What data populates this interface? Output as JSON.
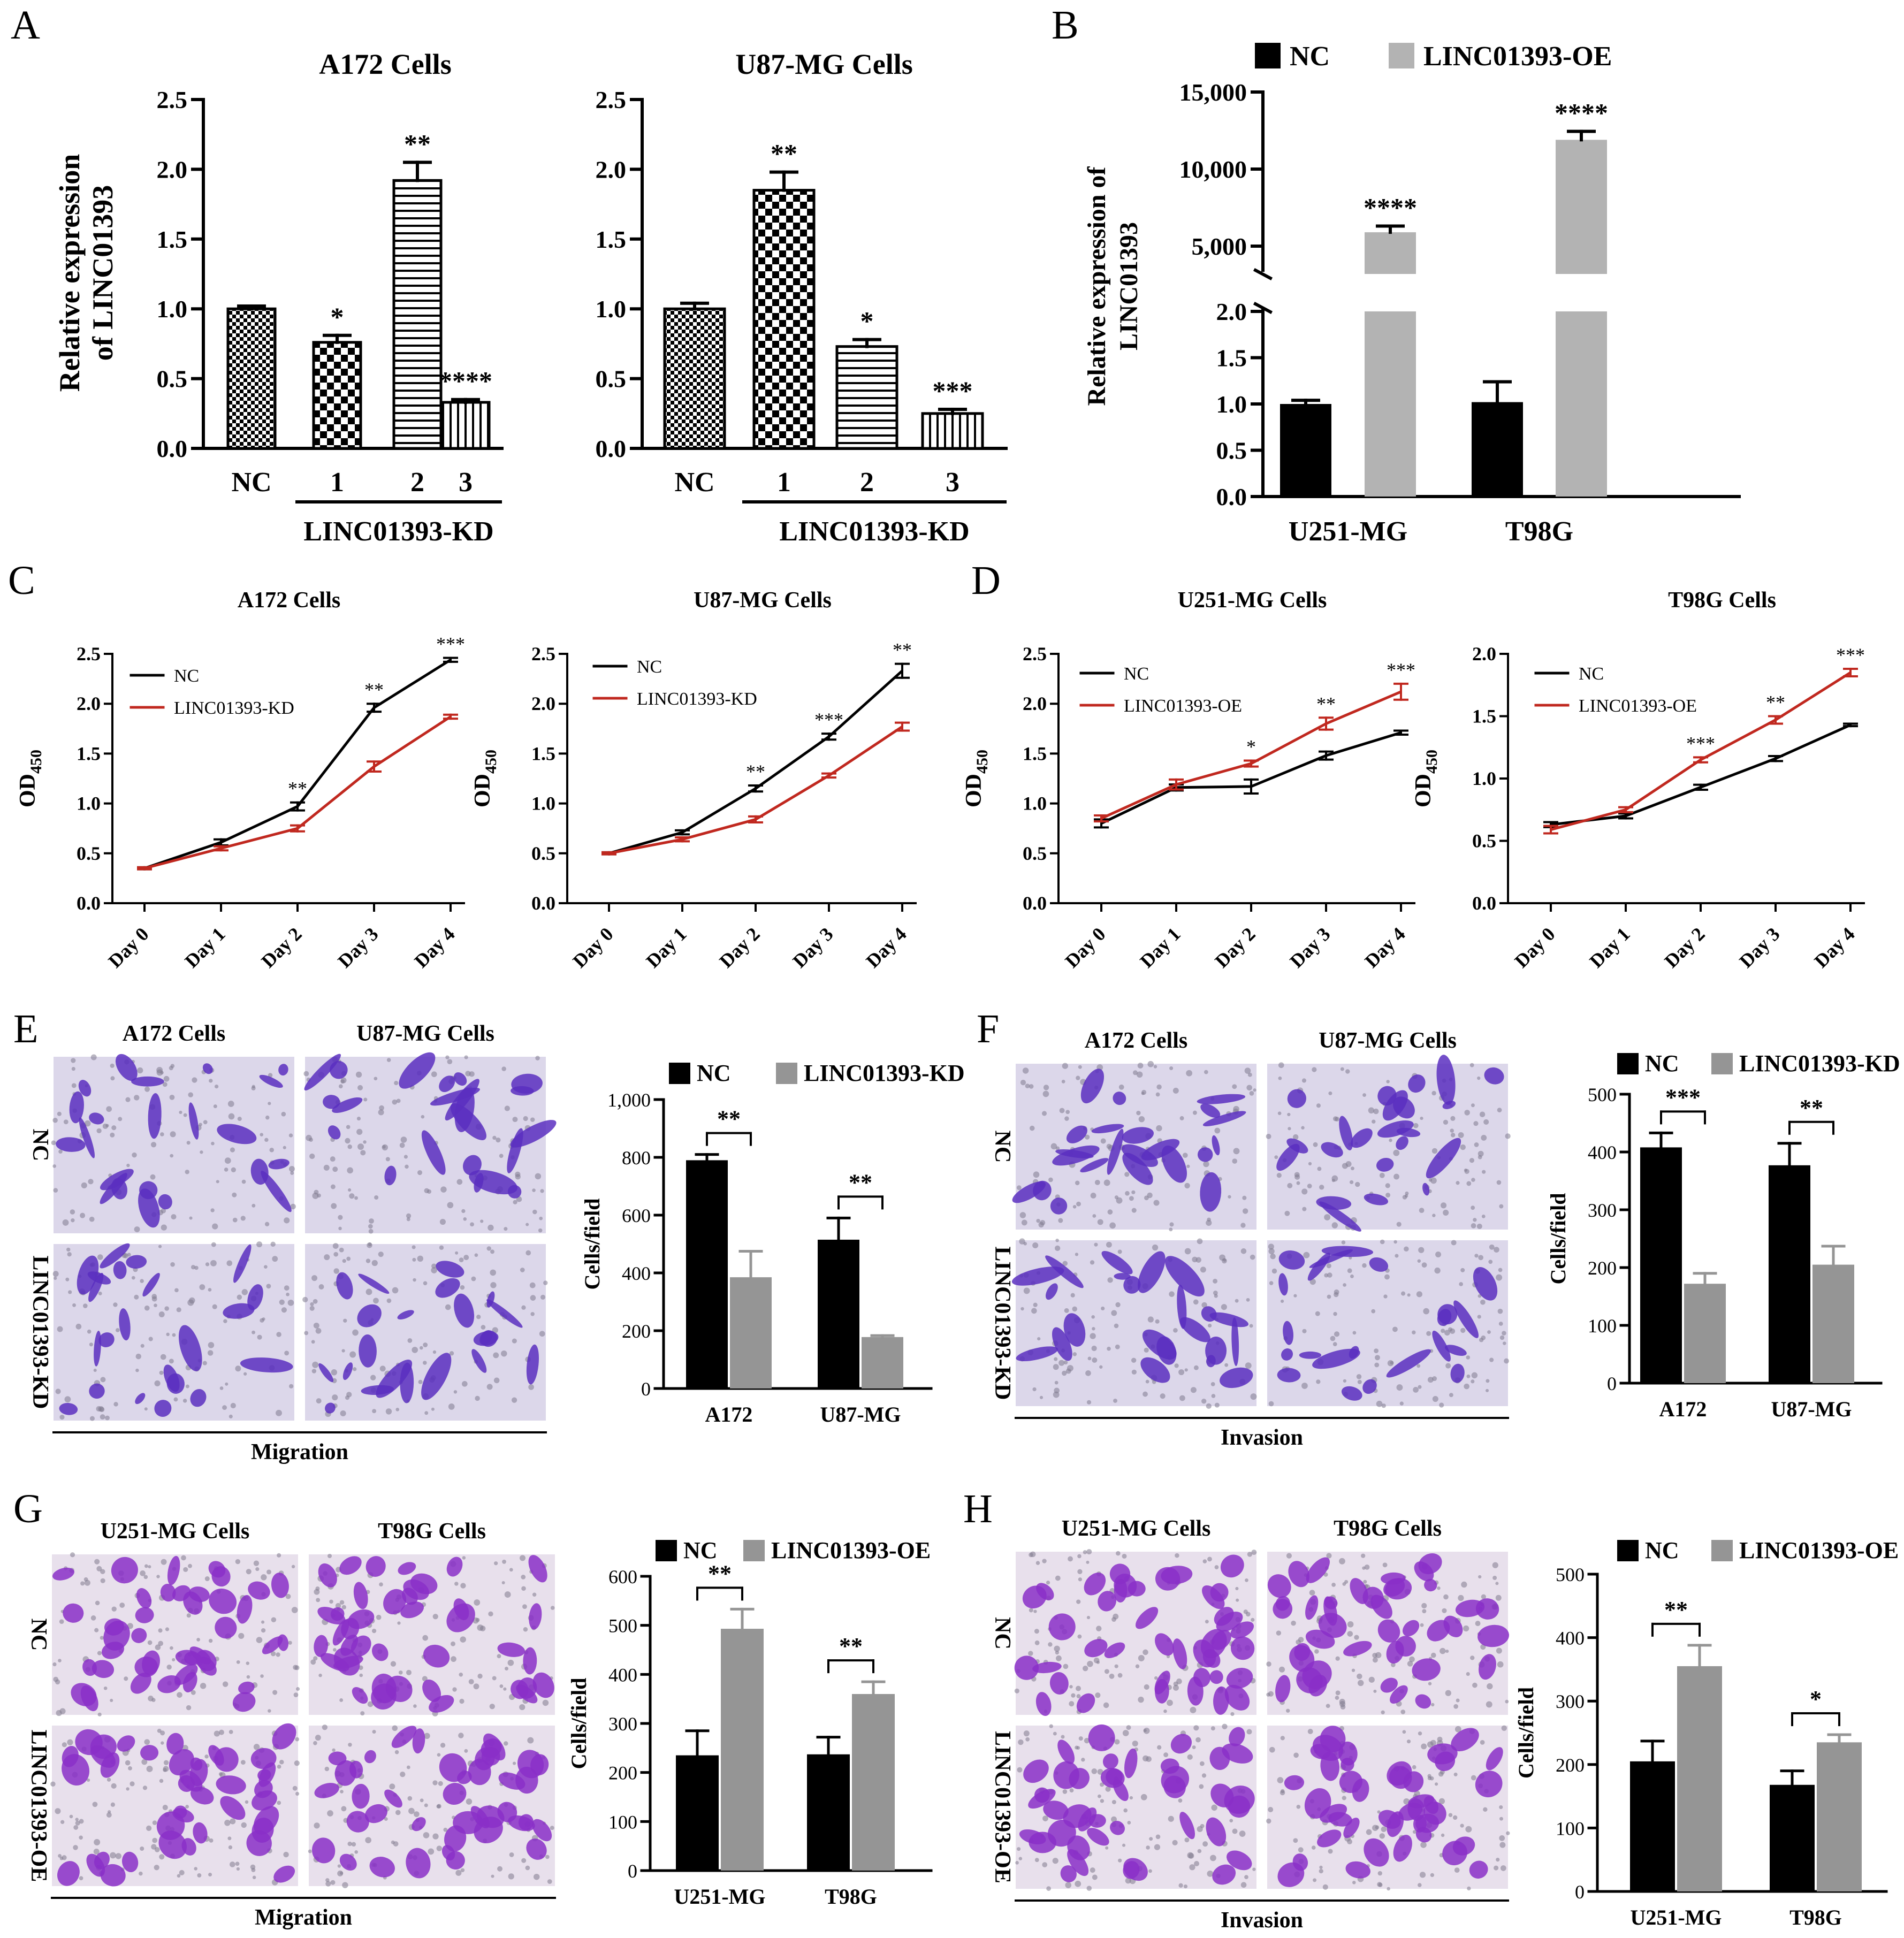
{
  "figure": {
    "panel_letters": [
      "A",
      "B",
      "C",
      "D",
      "E",
      "F",
      "G",
      "H"
    ],
    "colors": {
      "black": "#000000",
      "grey": "#b3b3b3",
      "grey_dark": "#959595",
      "red": "#c0281f",
      "stain": "#5a2fc0",
      "stain_bg": "#dcd7ea"
    }
  },
  "chart_data": [
    {
      "panel": "A",
      "type": "bar",
      "title": "A172 Cells",
      "ylabel": [
        "Relative expression",
        "of LINC01393"
      ],
      "categories": [
        "NC",
        "1",
        "2",
        "3"
      ],
      "group_label": "LINC01393-KD",
      "values": [
        1.0,
        0.76,
        1.92,
        0.33
      ],
      "errors": [
        0.02,
        0.05,
        0.13,
        0.02
      ],
      "significance": [
        "",
        "*",
        "**",
        "****"
      ],
      "patterns": [
        "checker-fine",
        "checker",
        "hlines",
        "vlines"
      ],
      "ylim": [
        0,
        2.5
      ],
      "yticks": [
        "0.0",
        "0.5",
        "1.0",
        "1.5",
        "2.0",
        "2.5"
      ]
    },
    {
      "panel": "A",
      "type": "bar",
      "title": "U87-MG Cells",
      "categories": [
        "NC",
        "1",
        "2",
        "3"
      ],
      "group_label": "LINC01393-KD",
      "values": [
        1.0,
        1.85,
        0.73,
        0.25
      ],
      "errors": [
        0.04,
        0.13,
        0.05,
        0.03
      ],
      "significance": [
        "",
        "**",
        "*",
        "***"
      ],
      "patterns": [
        "checker-fine",
        "checker",
        "hlines",
        "vlines"
      ],
      "ylim": [
        0,
        2.5
      ],
      "yticks": [
        "0.0",
        "0.5",
        "1.0",
        "1.5",
        "2.0",
        "2.5"
      ]
    },
    {
      "panel": "B",
      "type": "bar",
      "broken_axis": true,
      "ylabel": [
        "Relative expression of",
        "LINC01393"
      ],
      "legend": [
        "NC",
        "LINC01393-OE"
      ],
      "categories": [
        "U251-MG",
        "T98G"
      ],
      "series": [
        {
          "name": "NC",
          "values": [
            1.0,
            1.02
          ],
          "errors": [
            0.04,
            0.22
          ]
        },
        {
          "name": "LINC01393-OE",
          "values": [
            5900,
            11900
          ],
          "errors": [
            400,
            550
          ]
        }
      ],
      "significance": [
        "****",
        "****"
      ],
      "lower_yticks": [
        "0.0",
        "0.5",
        "1.0",
        "1.5",
        "2.0"
      ],
      "upper_yticks": [
        "5,000",
        "10,000",
        "15,000"
      ]
    },
    {
      "panel": "C",
      "type": "line",
      "title": "A172 Cells",
      "ylabel": "OD",
      "ylabel_sub": "450",
      "x": [
        "Day 0",
        "Day 1",
        "Day 2",
        "Day 3",
        "Day 4"
      ],
      "legend": [
        "NC",
        "LINC01393-KD"
      ],
      "series": [
        {
          "name": "NC",
          "values": [
            0.35,
            0.61,
            0.97,
            1.96,
            2.44
          ],
          "errors": [
            0.01,
            0.03,
            0.04,
            0.04,
            0.02
          ]
        },
        {
          "name": "LINC01393-KD",
          "values": [
            0.35,
            0.55,
            0.75,
            1.37,
            1.87
          ],
          "errors": [
            0.01,
            0.02,
            0.03,
            0.05,
            0.02
          ]
        }
      ],
      "significance": [
        "",
        "",
        "**",
        "**",
        "***"
      ],
      "ylim": [
        0,
        2.5
      ],
      "yticks": [
        "0.0",
        "0.5",
        "1.0",
        "1.5",
        "2.0",
        "2.5"
      ]
    },
    {
      "panel": "C",
      "type": "line",
      "title": "U87-MG Cells",
      "ylabel": "OD",
      "ylabel_sub": "450",
      "x": [
        "Day 0",
        "Day 1",
        "Day 2",
        "Day 3",
        "Day 4"
      ],
      "legend": [
        "NC",
        "LINC01393-KD"
      ],
      "series": [
        {
          "name": "NC",
          "values": [
            0.5,
            0.71,
            1.15,
            1.67,
            2.33
          ],
          "errors": [
            0.01,
            0.02,
            0.03,
            0.03,
            0.07
          ]
        },
        {
          "name": "LINC01393-KD",
          "values": [
            0.5,
            0.64,
            0.84,
            1.28,
            1.77
          ],
          "errors": [
            0.01,
            0.02,
            0.03,
            0.02,
            0.04
          ]
        }
      ],
      "significance": [
        "",
        "",
        "**",
        "***",
        "**"
      ],
      "ylim": [
        0,
        2.5
      ],
      "yticks": [
        "0.0",
        "0.5",
        "1.0",
        "1.5",
        "2.0",
        "2.5"
      ]
    },
    {
      "panel": "D",
      "type": "line",
      "title": "U251-MG Cells",
      "ylabel": "OD",
      "ylabel_sub": "450",
      "x": [
        "Day 0",
        "Day 1",
        "Day 2",
        "Day 3",
        "Day 4"
      ],
      "legend": [
        "NC",
        "LINC01393-OE"
      ],
      "series": [
        {
          "name": "NC",
          "values": [
            0.8,
            1.16,
            1.17,
            1.48,
            1.71
          ],
          "errors": [
            0.04,
            0.03,
            0.07,
            0.04,
            0.02
          ]
        },
        {
          "name": "LINC01393-OE",
          "values": [
            0.85,
            1.19,
            1.4,
            1.8,
            2.12
          ],
          "errors": [
            0.03,
            0.05,
            0.03,
            0.06,
            0.08
          ]
        }
      ],
      "significance": [
        "",
        "",
        "*",
        "**",
        "***"
      ],
      "ylim": [
        0,
        2.5
      ],
      "yticks": [
        "0.0",
        "0.5",
        "1.0",
        "1.5",
        "2.0",
        "2.5"
      ]
    },
    {
      "panel": "D",
      "type": "line",
      "title": "T98G Cells",
      "ylabel": "OD",
      "ylabel_sub": "450",
      "x": [
        "Day 0",
        "Day 1",
        "Day 2",
        "Day 3",
        "Day 4"
      ],
      "legend": [
        "NC",
        "LINC01393-OE"
      ],
      "series": [
        {
          "name": "NC",
          "values": [
            0.63,
            0.7,
            0.93,
            1.16,
            1.43
          ],
          "errors": [
            0.02,
            0.02,
            0.02,
            0.02,
            0.01
          ]
        },
        {
          "name": "LINC01393-OE",
          "values": [
            0.59,
            0.75,
            1.15,
            1.47,
            1.85
          ],
          "errors": [
            0.03,
            0.02,
            0.02,
            0.03,
            0.03
          ]
        }
      ],
      "significance": [
        "",
        "",
        "***",
        "**",
        "***"
      ],
      "ylim": [
        0,
        2.0
      ],
      "yticks": [
        "0.0",
        "0.5",
        "1.0",
        "1.5",
        "2.0"
      ]
    },
    {
      "panel": "E",
      "type": "bar",
      "ylabel": "Cells/field",
      "legend": [
        "NC",
        "LINC01393-KD"
      ],
      "categories": [
        "A172",
        "U87-MG"
      ],
      "series": [
        {
          "name": "NC",
          "values": [
            790,
            515
          ],
          "errors": [
            20,
            75
          ]
        },
        {
          "name": "LINC01393-KD",
          "values": [
            385,
            178
          ],
          "errors": [
            90,
            5
          ]
        }
      ],
      "significance": [
        "**",
        "**"
      ],
      "ylim": [
        0,
        1000
      ],
      "yticks": [
        "0",
        "200",
        "400",
        "600",
        "800",
        "1,000"
      ],
      "images": {
        "columns": [
          "A172 Cells",
          "U87-MG Cells"
        ],
        "rows": [
          "NC",
          "LINC01393-KD"
        ],
        "caption": "Migration"
      }
    },
    {
      "panel": "F",
      "type": "bar",
      "ylabel": "Cells/field",
      "legend": [
        "NC",
        "LINC01393-KD"
      ],
      "categories": [
        "A172",
        "U87-MG"
      ],
      "series": [
        {
          "name": "NC",
          "values": [
            408,
            377
          ],
          "errors": [
            25,
            38
          ]
        },
        {
          "name": "LINC01393-KD",
          "values": [
            172,
            205
          ],
          "errors": [
            18,
            32
          ]
        }
      ],
      "significance": [
        "***",
        "**"
      ],
      "ylim": [
        0,
        500
      ],
      "yticks": [
        "0",
        "100",
        "200",
        "300",
        "400",
        "500"
      ],
      "images": {
        "columns": [
          "A172 Cells",
          "U87-MG Cells"
        ],
        "rows": [
          "NC",
          "LINC01393-KD"
        ],
        "caption": "Invasion"
      }
    },
    {
      "panel": "G",
      "type": "bar",
      "ylabel": "Cells/field",
      "legend": [
        "NC",
        "LINC01393-OE"
      ],
      "categories": [
        "U251-MG",
        "T98G"
      ],
      "series": [
        {
          "name": "NC",
          "values": [
            235,
            237
          ],
          "errors": [
            50,
            35
          ]
        },
        {
          "name": "LINC01393-OE",
          "values": [
            493,
            360
          ],
          "errors": [
            40,
            25
          ]
        }
      ],
      "significance": [
        "**",
        "**"
      ],
      "ylim": [
        0,
        600
      ],
      "yticks": [
        "0",
        "100",
        "200",
        "300",
        "400",
        "500",
        "600"
      ],
      "images": {
        "columns": [
          "U251-MG Cells",
          "T98G Cells"
        ],
        "rows": [
          "NC",
          "LINC01393-OE"
        ],
        "caption": "Migration"
      }
    },
    {
      "panel": "H",
      "type": "bar",
      "ylabel": "Cells/field",
      "legend": [
        "NC",
        "LINC01393-OE"
      ],
      "categories": [
        "U251-MG",
        "T98G"
      ],
      "series": [
        {
          "name": "NC",
          "values": [
            205,
            168
          ],
          "errors": [
            32,
            22
          ]
        },
        {
          "name": "LINC01393-OE",
          "values": [
            355,
            235
          ],
          "errors": [
            33,
            12
          ]
        }
      ],
      "significance": [
        "**",
        "*"
      ],
      "ylim": [
        0,
        500
      ],
      "yticks": [
        "0",
        "100",
        "200",
        "300",
        "400",
        "500"
      ],
      "images": {
        "columns": [
          "U251-MG Cells",
          "T98G Cells"
        ],
        "rows": [
          "NC",
          "LINC01393-OE"
        ],
        "caption": "Invasion"
      }
    }
  ]
}
